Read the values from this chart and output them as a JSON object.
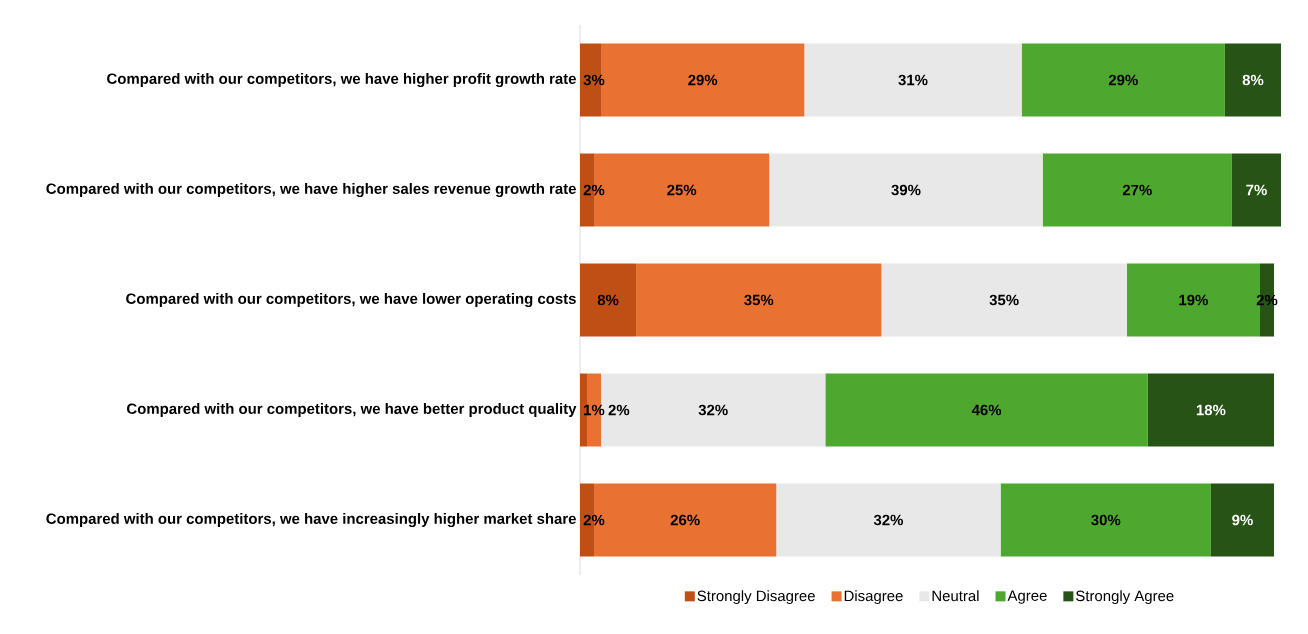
{
  "chart_data": {
    "type": "bar",
    "orientation": "horizontal",
    "stacked": true,
    "legend": "bottom",
    "tick_labels": "y",
    "categories": [
      "Compared with our competitors, we have higher profit growth rate",
      "Compared with our competitors, we have higher sales revenue growth rate",
      "Compared with our competitors, we have lower operating costs",
      "Compared with our competitors, we have better product quality",
      "Compared with our competitors, we have increasingly higher market share"
    ],
    "series": [
      {
        "name": "Strongly Disagree",
        "color": "#c04f15",
        "values": [
          3,
          2,
          8,
          1,
          2
        ],
        "value_labels": [
          "3%",
          "2%",
          "8%",
          "1%",
          "2%"
        ]
      },
      {
        "name": "Disagree",
        "color": "#e97132",
        "values": [
          29,
          25,
          35,
          2,
          26
        ],
        "value_labels": [
          "29%",
          "25%",
          "35%",
          "2%",
          "26%"
        ]
      },
      {
        "name": "Neutral",
        "color": "#e8e8e8",
        "values": [
          31,
          39,
          35,
          32,
          32
        ],
        "value_labels": [
          "31%",
          "39%",
          "35%",
          "32%",
          "32%"
        ]
      },
      {
        "name": "Agree",
        "color": "#4ea72e",
        "values": [
          29,
          27,
          19,
          46,
          30
        ],
        "value_labels": [
          "29%",
          "27%",
          "19%",
          "46%",
          "30%"
        ]
      },
      {
        "name": "Strongly Agree",
        "color": "#275317",
        "values": [
          8,
          7,
          2,
          18,
          9
        ],
        "value_labels": [
          "8%",
          "7%",
          "2%",
          "18%",
          "9%"
        ]
      }
    ]
  }
}
